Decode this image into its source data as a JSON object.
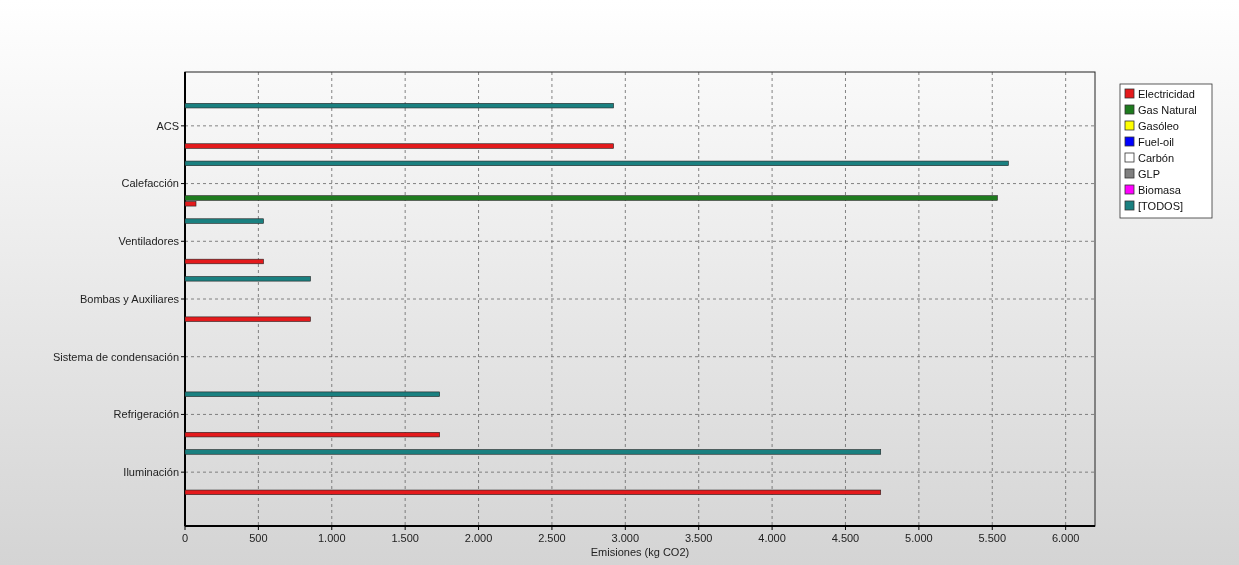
{
  "chart_data": {
    "type": "bar",
    "orientation": "horizontal",
    "categories": [
      "ACS",
      "Calefacción",
      "Ventiladores",
      "Bombas y Auxiliares",
      "Sistema de condensación",
      "Refrigeración",
      "Iluminación"
    ],
    "series": [
      {
        "name": "Electricidad",
        "color": "#e41a1c",
        "values": [
          2920,
          75,
          535,
          855,
          null,
          1735,
          4740
        ]
      },
      {
        "name": "Gas Natural",
        "color": "#1e7b1e",
        "values": [
          null,
          5535,
          null,
          null,
          null,
          null,
          null
        ]
      },
      {
        "name": "Gasóleo",
        "color": "#ffff00",
        "values": [
          null,
          null,
          null,
          null,
          null,
          null,
          null
        ]
      },
      {
        "name": "Fuel-oil",
        "color": "#0000ff",
        "values": [
          null,
          null,
          null,
          null,
          null,
          null,
          null
        ]
      },
      {
        "name": "Carbón",
        "color": "#ffffff",
        "values": [
          null,
          null,
          null,
          null,
          null,
          null,
          null
        ]
      },
      {
        "name": "GLP",
        "color": "#808080",
        "values": [
          null,
          null,
          null,
          null,
          null,
          null,
          null
        ]
      },
      {
        "name": "Biomasa",
        "color": "#ff00ff",
        "values": [
          null,
          null,
          null,
          null,
          null,
          null,
          null
        ]
      },
      {
        "name": "[TODOS]",
        "color": "#1a8080",
        "values": [
          2920,
          5610,
          535,
          855,
          null,
          1735,
          4740
        ]
      }
    ],
    "xlabel": "Emisiones (kg CO2)",
    "xlim": [
      0,
      6200
    ],
    "xticks": [
      0,
      500,
      {
        "value": 1000,
        "label": "1.000"
      },
      {
        "value": 1500,
        "label": "1.500"
      },
      {
        "value": 2000,
        "label": "2.000"
      },
      {
        "value": 2500,
        "label": "2.500"
      },
      {
        "value": 3000,
        "label": "3.000"
      },
      {
        "value": 3500,
        "label": "3.500"
      },
      {
        "value": 4000,
        "label": "4.000"
      },
      {
        "value": 4500,
        "label": "4.500"
      },
      {
        "value": 5000,
        "label": "5.000"
      },
      {
        "value": 5500,
        "label": "5.500"
      },
      {
        "value": 6000,
        "label": "6.000"
      }
    ],
    "grid": true,
    "legend": "top right"
  }
}
